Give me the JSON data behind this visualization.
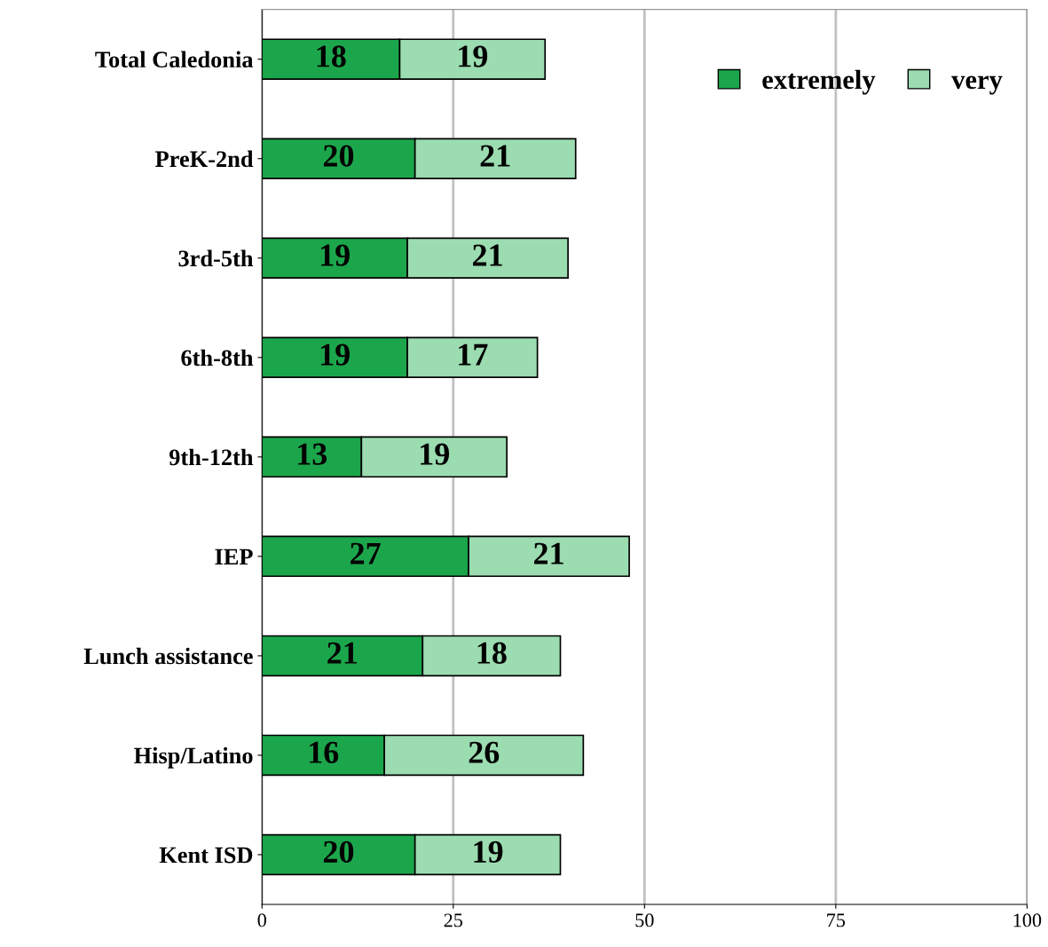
{
  "chart_data": {
    "type": "bar",
    "orientation": "horizontal",
    "stacked": true,
    "categories": [
      "Total Caledonia",
      "PreK-2nd",
      "3rd-5th",
      "6th-8th",
      "9th-12th",
      "IEP",
      "Lunch assistance",
      "Hisp/Latino",
      "Kent ISD"
    ],
    "series": [
      {
        "name": "extremely",
        "color": "#1ca64c",
        "values": [
          18,
          20,
          19,
          19,
          13,
          27,
          21,
          16,
          20
        ]
      },
      {
        "name": "very",
        "color": "#9bdcb0",
        "values": [
          19,
          21,
          21,
          17,
          19,
          21,
          18,
          26,
          19
        ]
      }
    ],
    "xlim": [
      0,
      100
    ],
    "xticks": [
      0,
      25,
      50,
      75,
      100
    ],
    "grid": "x",
    "legend": "top right",
    "data_labels": true
  }
}
